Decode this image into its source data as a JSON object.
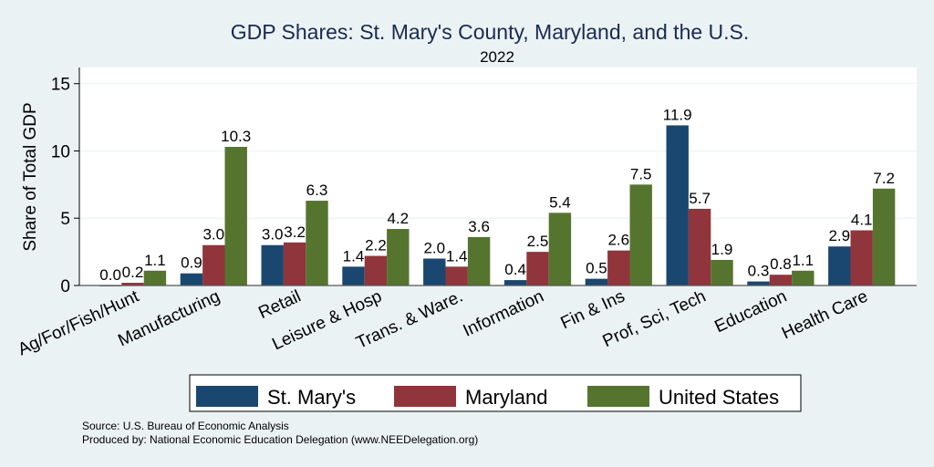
{
  "chart_data": {
    "type": "bar",
    "title": "GDP Shares: St. Mary's County, Maryland, and the U.S.",
    "subtitle": "2022",
    "xlabel": "",
    "ylabel": "Share of Total GDP",
    "ylim": [
      0,
      16.2
    ],
    "yticks": [
      0,
      5,
      10,
      15
    ],
    "grid": true,
    "legend_position": "bottom",
    "categories": [
      "Ag/For/Fish/Hunt",
      "Manufacturing",
      "Retail",
      "Leisure & Hosp",
      "Trans. & Ware.",
      "Information",
      "Fin & Ins",
      "Prof, Sci, Tech",
      "Education",
      "Health Care"
    ],
    "series": [
      {
        "name": "St. Mary's",
        "color": "#1a476f",
        "values": [
          0.0,
          0.9,
          3.0,
          1.4,
          2.0,
          0.4,
          0.5,
          11.9,
          0.3,
          2.9
        ]
      },
      {
        "name": "Maryland",
        "color": "#90353b",
        "values": [
          0.2,
          3.0,
          3.2,
          2.2,
          1.4,
          2.5,
          2.6,
          5.7,
          0.8,
          4.1
        ]
      },
      {
        "name": "United States",
        "color": "#55752f",
        "values": [
          1.1,
          10.3,
          6.3,
          4.2,
          3.6,
          5.4,
          7.5,
          1.9,
          1.1,
          7.2
        ]
      }
    ],
    "notes": [
      "Source: U.S. Bureau of Economic Analysis",
      "Produced by: National Economic Education Delegation (www.NEEDelegation.org)"
    ]
  }
}
